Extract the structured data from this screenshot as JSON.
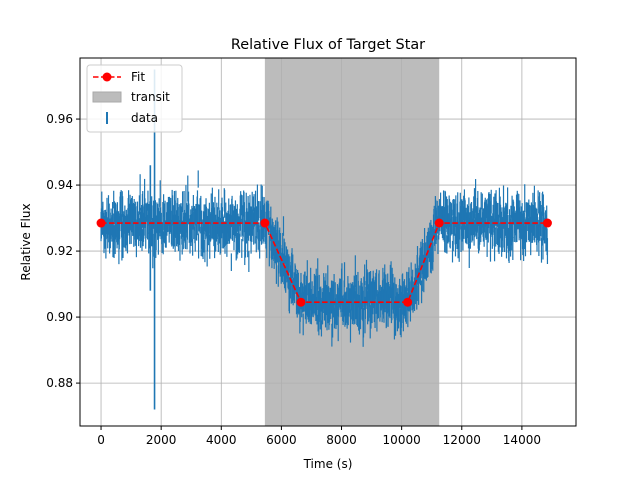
{
  "chart_data": {
    "type": "line",
    "title": "Relative Flux of Target Star",
    "xlabel": "Time (s)",
    "ylabel": "Relative Flux",
    "xlim": [
      -700,
      15800
    ],
    "ylim": [
      0.867,
      0.9785
    ],
    "xticks": [
      0,
      2000,
      4000,
      6000,
      8000,
      10000,
      12000,
      14000
    ],
    "xtick_labels": [
      "0",
      "2000",
      "4000",
      "6000",
      "8000",
      "10000",
      "12000",
      "14000"
    ],
    "yticks": [
      0.88,
      0.9,
      0.92,
      0.94,
      0.96
    ],
    "ytick_labels": [
      "0.88",
      "0.90",
      "0.92",
      "0.94",
      "0.96"
    ],
    "grid": true,
    "legend_position": "top-left",
    "legend": {
      "fit_label": "Fit",
      "transit_label": "transit",
      "data_label": "data"
    },
    "transit_region": {
      "x_start": 5450,
      "x_end": 11250,
      "color": "#bcbcbc"
    },
    "fit": {
      "name": "Fit",
      "color": "#ff0000",
      "x": [
        0,
        5450,
        6650,
        10200,
        11250,
        14850
      ],
      "y": [
        0.9285,
        0.9285,
        0.9045,
        0.9045,
        0.9285,
        0.9285
      ]
    },
    "data": {
      "name": "data",
      "color": "#1f77b4",
      "x_start": 0,
      "x_end": 14850,
      "sample_count": 1200,
      "baseline": 0.9285,
      "in_transit": 0.9045,
      "typical_error": 0.004,
      "outliers": [
        {
          "x": 1780,
          "y_low": 0.872,
          "y_high": 0.975
        },
        {
          "x": 1640,
          "y_low": 0.908,
          "y_high": 0.946
        }
      ]
    }
  }
}
